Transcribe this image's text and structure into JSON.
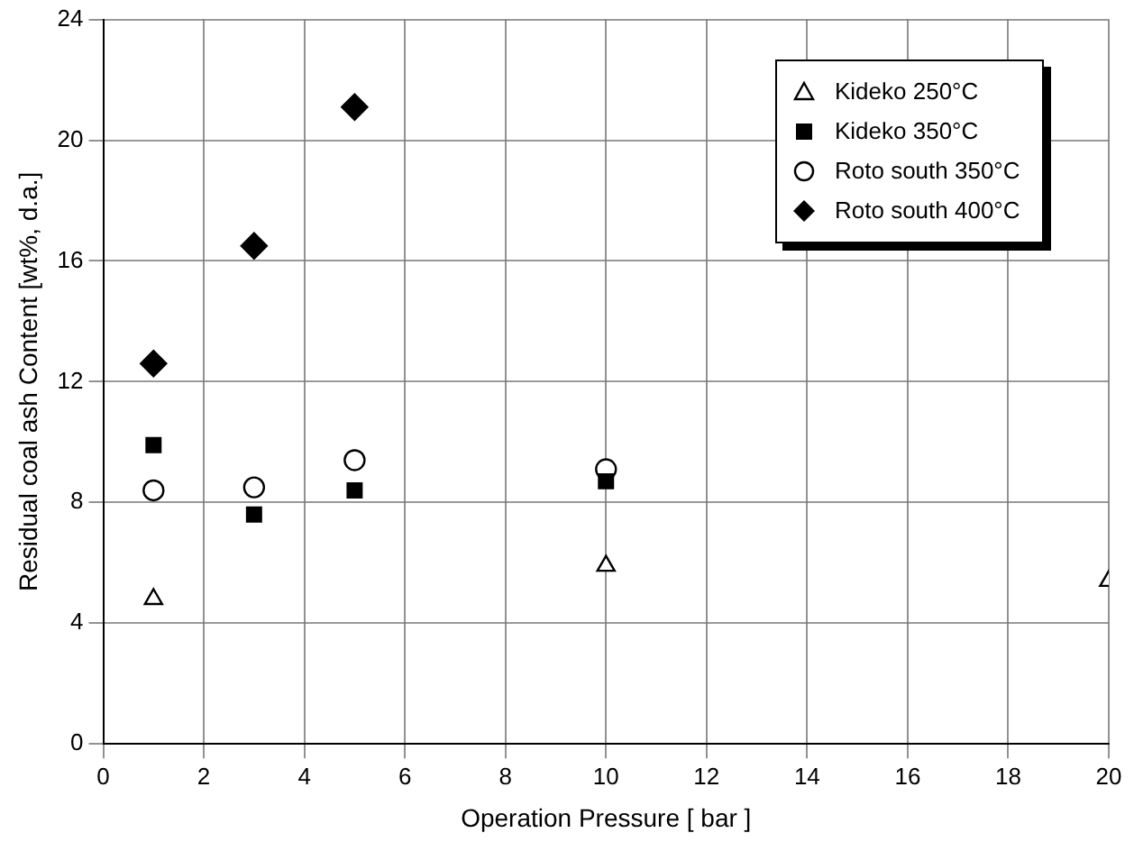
{
  "chart_data": {
    "type": "scatter",
    "xlabel": "Operation Pressure [ bar ]",
    "ylabel": "Residual coal ash Content [wt%, d.a.]",
    "xlim": [
      0,
      20
    ],
    "xticks": [
      0,
      2,
      4,
      6,
      8,
      10,
      12,
      14,
      16,
      18,
      20
    ],
    "ylim": [
      0,
      24
    ],
    "yticks": [
      0,
      4,
      8,
      12,
      16,
      20,
      24
    ],
    "grid": true,
    "legend": "top right",
    "series": [
      {
        "name": "Kideko 250°C",
        "color": "#000000",
        "marker": "triangle",
        "x": [
          1,
          10,
          20
        ],
        "values": [
          4.8,
          5.9,
          5.4
        ]
      },
      {
        "name": "Kideko 350°C",
        "color": "#000000",
        "marker": "square",
        "x": [
          1,
          3,
          5,
          10
        ],
        "values": [
          9.9,
          7.6,
          8.4,
          8.7
        ]
      },
      {
        "name": "Roto south 350°C",
        "color": "#000000",
        "marker": "circle",
        "x": [
          1,
          3,
          5,
          10
        ],
        "values": [
          8.4,
          8.5,
          9.4,
          9.1
        ]
      },
      {
        "name": "Roto south 400°C",
        "color": "#000000",
        "marker": "diamond",
        "x": [
          1,
          3,
          5
        ],
        "values": [
          12.6,
          16.5,
          21.1
        ]
      }
    ]
  }
}
